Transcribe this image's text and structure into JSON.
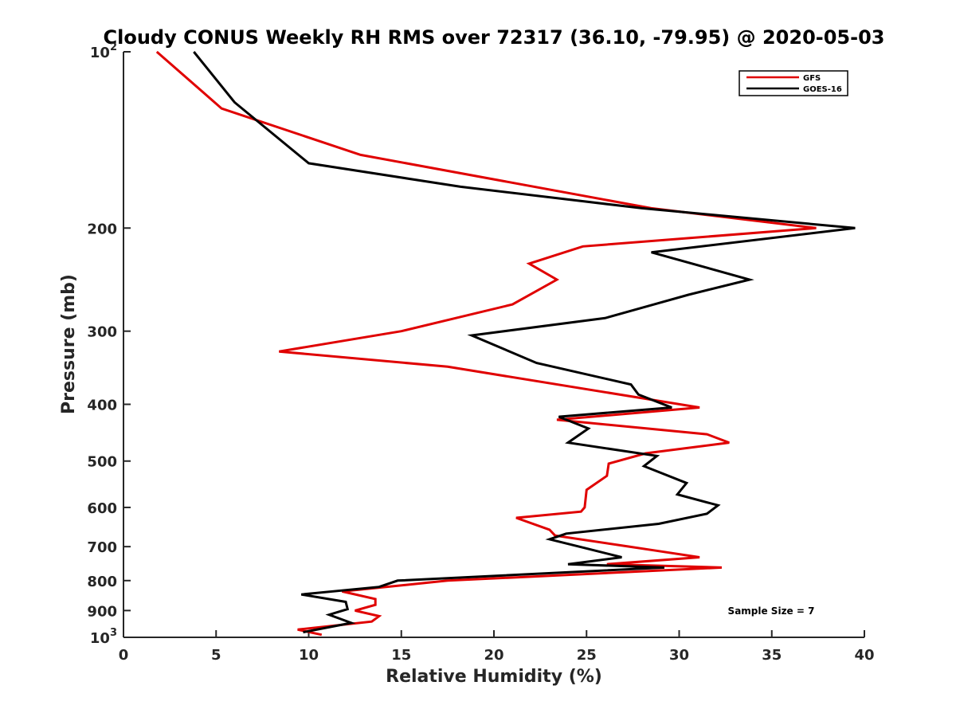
{
  "chart_data": {
    "type": "line",
    "title": "Cloudy CONUS Weekly RH RMS over 72317 (36.10, -79.95) @ 2020-05-03",
    "xlabel": "Relative Humidity (%)",
    "ylabel": "Pressure (mb)",
    "xlim": [
      0,
      40
    ],
    "ylim": [
      100,
      1000
    ],
    "y_scale": "log",
    "y_reversed": true,
    "grid": false,
    "legend_position": "top-right",
    "x_ticks": [
      "0",
      "5",
      "10",
      "15",
      "20",
      "25",
      "30",
      "35",
      "40"
    ],
    "y_ticks": [
      {
        "value": 100,
        "base": "10",
        "exp": "2"
      },
      {
        "value": 200,
        "base": "200",
        "exp": ""
      },
      {
        "value": 300,
        "base": "300",
        "exp": ""
      },
      {
        "value": 400,
        "base": "400",
        "exp": ""
      },
      {
        "value": 500,
        "base": "500",
        "exp": ""
      },
      {
        "value": 600,
        "base": "600",
        "exp": ""
      },
      {
        "value": 700,
        "base": "700",
        "exp": ""
      },
      {
        "value": 800,
        "base": "800",
        "exp": ""
      },
      {
        "value": 900,
        "base": "900",
        "exp": ""
      },
      {
        "value": 1000,
        "base": "10",
        "exp": "3"
      }
    ],
    "annotation": "Sample Size = 7",
    "series": [
      {
        "name": "GFS",
        "color": "#e00000",
        "x": [
          1.8,
          5.3,
          12.8,
          28.5,
          37.4,
          24.8,
          21.9,
          23.4,
          21.0,
          15.0,
          8.4,
          17.5,
          31.1,
          23.4,
          31.5,
          32.7,
          28.2,
          26.2,
          26.1,
          25.0,
          24.9,
          24.7,
          21.2,
          23.0,
          23.3,
          27.3,
          28.6,
          31.1,
          26.1,
          32.3,
          17.5,
          11.8,
          13.6,
          13.6,
          12.5,
          13.8,
          13.4,
          9.4,
          10.7
        ],
        "y": [
          100,
          125,
          150,
          185,
          200,
          215,
          230,
          245,
          270,
          300,
          325,
          345,
          405,
          425,
          450,
          465,
          485,
          505,
          530,
          560,
          600,
          610,
          625,
          655,
          670,
          700,
          710,
          730,
          750,
          760,
          800,
          835,
          860,
          880,
          900,
          920,
          940,
          970,
          990
        ]
      },
      {
        "name": "GOES-16",
        "color": "#000000",
        "x": [
          3.8,
          6.0,
          10.0,
          18.2,
          28.0,
          39.5,
          28.5,
          33.8,
          30.5,
          26.0,
          18.8,
          22.3,
          27.4,
          27.8,
          29.6,
          23.5,
          25.1,
          24.0,
          28.8,
          28.1,
          30.4,
          29.9,
          32.1,
          31.5,
          28.9,
          23.9,
          23.0,
          25.0,
          26.9,
          24.0,
          29.2,
          14.8,
          13.8,
          9.6,
          12.0,
          12.1,
          11.1,
          12.3,
          9.7
        ],
        "y": [
          100,
          122,
          155,
          170,
          185,
          200,
          220,
          245,
          260,
          285,
          305,
          340,
          370,
          385,
          405,
          420,
          440,
          465,
          490,
          510,
          545,
          570,
          595,
          615,
          640,
          665,
          680,
          705,
          730,
          750,
          760,
          800,
          820,
          845,
          870,
          895,
          915,
          945,
          980
        ]
      }
    ]
  }
}
